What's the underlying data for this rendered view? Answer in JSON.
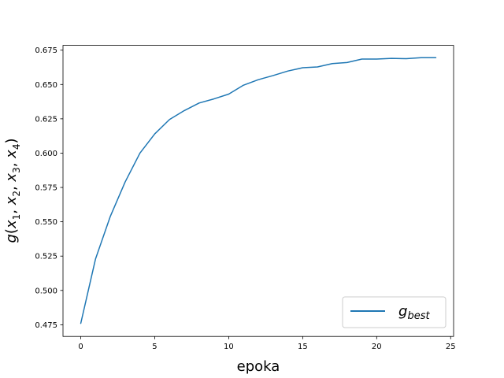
{
  "chart_data": {
    "type": "line",
    "title": "",
    "xlabel": "epoka",
    "ylabel": {
      "base": "g",
      "open": "(",
      "vars": [
        {
          "sym": "x",
          "sub": "1"
        },
        {
          "sym": "x",
          "sub": "2"
        },
        {
          "sym": "x",
          "sub": "3"
        },
        {
          "sym": "x",
          "sub": "4"
        }
      ],
      "sep": ", ",
      "close": ")"
    },
    "xlim": [
      -1.2,
      25.2
    ],
    "ylim": [
      0.4665,
      0.6785
    ],
    "xticks": [
      0,
      5,
      10,
      15,
      20,
      25
    ],
    "xtick_labels": [
      "0",
      "5",
      "10",
      "15",
      "20",
      "25"
    ],
    "yticks": [
      0.475,
      0.5,
      0.525,
      0.55,
      0.575,
      0.6,
      0.625,
      0.65,
      0.675
    ],
    "ytick_labels": [
      "0.475",
      "0.500",
      "0.525",
      "0.550",
      "0.575",
      "0.600",
      "0.625",
      "0.650",
      "0.675"
    ],
    "grid": false,
    "legend_position": "lower-right",
    "x": [
      0,
      1,
      2,
      3,
      4,
      5,
      6,
      7,
      8,
      9,
      10,
      11,
      12,
      13,
      14,
      15,
      16,
      17,
      18,
      19,
      20,
      21,
      22,
      23,
      24
    ],
    "series": [
      {
        "name": {
          "base": "g",
          "sub": "best"
        },
        "color": "#1f77b4",
        "values": [
          0.476,
          0.523,
          0.554,
          0.579,
          0.6,
          0.614,
          0.6245,
          0.631,
          0.6365,
          0.6395,
          0.643,
          0.6495,
          0.6535,
          0.6565,
          0.6598,
          0.6622,
          0.6628,
          0.6652,
          0.666,
          0.6685,
          0.6685,
          0.669,
          0.6688,
          0.6695,
          0.6695
        ]
      }
    ]
  }
}
